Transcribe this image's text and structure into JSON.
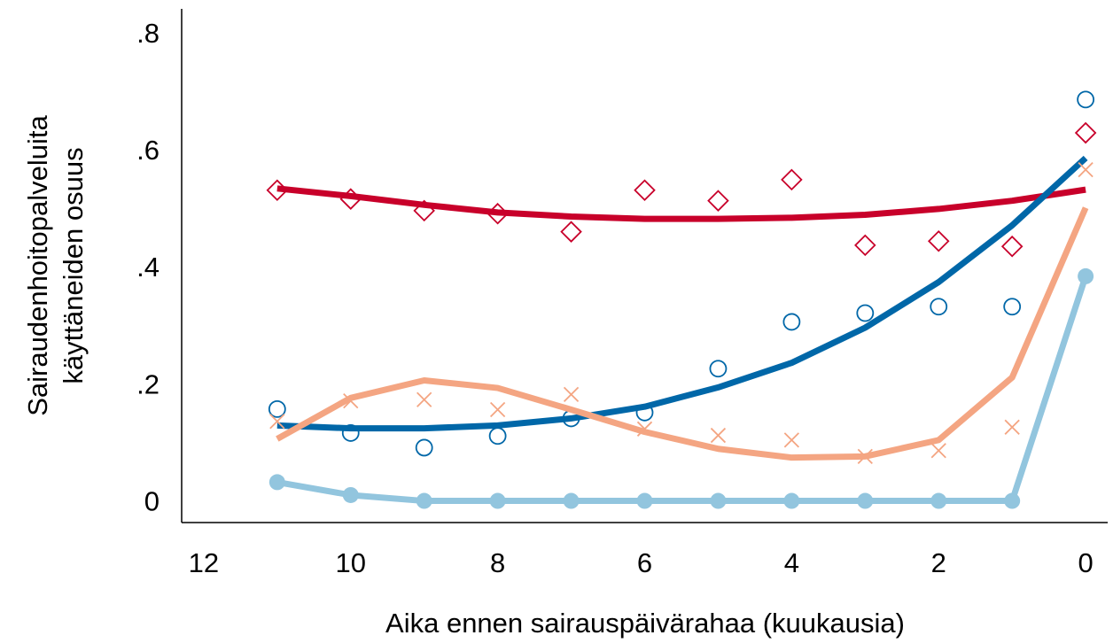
{
  "chart_data": {
    "type": "line",
    "xlabel": "Aika ennen sairauspäivärahaa (kuukausia)",
    "ylabel": [
      "Sairaudenhoitopalveluita",
      "käyttäneiden osuus"
    ],
    "x": [
      11,
      10,
      9,
      8,
      7,
      6,
      5,
      4,
      3,
      2,
      1,
      0
    ],
    "xlim": [
      12.3,
      -0.3
    ],
    "xticks": [
      12,
      10,
      8,
      6,
      4,
      2,
      0
    ],
    "ylim": [
      -0.033,
      0.845
    ],
    "yticks": [
      0,
      {
        "value": 0.2,
        "label": ".2"
      },
      {
        "value": 0.4,
        "label": ".4"
      },
      {
        "value": 0.6,
        "label": ".6"
      },
      {
        "value": 0.8,
        "label": ".8"
      }
    ],
    "series": [
      {
        "color": "#c8002a",
        "mode": "markers",
        "marker": "diamond",
        "values": [
          0.535,
          0.52,
          0.5,
          0.495,
          0.464,
          0.535,
          0.517,
          0.553,
          0.441,
          0.448,
          0.439,
          0.633
        ]
      },
      {
        "color": "#c8002a",
        "mode": "lines",
        "values": [
          0.538,
          0.525,
          0.51,
          0.497,
          0.49,
          0.486,
          0.486,
          0.488,
          0.493,
          0.503,
          0.517,
          0.536
        ]
      },
      {
        "color": "#0067a8",
        "mode": "markers",
        "marker": "circle",
        "values": [
          0.161,
          0.12,
          0.095,
          0.115,
          0.145,
          0.155,
          0.23,
          0.31,
          0.325,
          0.336,
          0.336,
          0.69
        ]
      },
      {
        "color": "#0067a8",
        "mode": "lines",
        "values": [
          0.133,
          0.128,
          0.128,
          0.133,
          0.145,
          0.165,
          0.198,
          0.24,
          0.3,
          0.378,
          0.475,
          0.59
        ]
      },
      {
        "color": "#f4a582",
        "mode": "markers",
        "marker": "x",
        "values": [
          0.14,
          0.175,
          0.177,
          0.16,
          0.186,
          0.127,
          0.116,
          0.108,
          0.08,
          0.09,
          0.13,
          0.57
        ]
      },
      {
        "color": "#f4a582",
        "mode": "lines",
        "values": [
          0.11,
          0.18,
          0.21,
          0.197,
          0.16,
          0.122,
          0.093,
          0.078,
          0.08,
          0.108,
          0.215,
          0.505
        ]
      },
      {
        "color": "#92c5de",
        "mode": "lines+markers",
        "marker": "dot",
        "values": [
          0.036,
          0.014,
          0.004,
          0.004,
          0.004,
          0.004,
          0.004,
          0.004,
          0.004,
          0.004,
          0.004,
          0.388
        ]
      }
    ]
  }
}
